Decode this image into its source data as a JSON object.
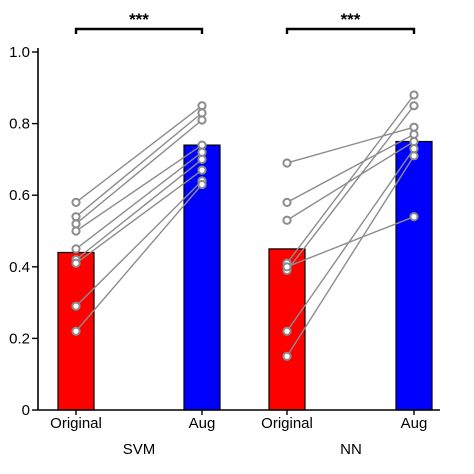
{
  "chart_data": {
    "type": "bar",
    "ylim": [
      0,
      1.0
    ],
    "yticks": [
      0,
      0.2,
      0.4,
      0.6,
      0.8,
      1.0
    ],
    "ytick_labels": [
      "0",
      "0.2",
      "0.4",
      "0.6",
      "0.8",
      "1.0"
    ],
    "grid": false,
    "groups": [
      {
        "name": "SVM",
        "significance": "***",
        "bars": [
          {
            "category": "Original",
            "value": 0.44,
            "color": "#ff0000"
          },
          {
            "category": "Aug",
            "value": 0.74,
            "color": "#0000ff"
          }
        ],
        "pairs": [
          [
            0.58,
            0.85
          ],
          [
            0.54,
            0.83
          ],
          [
            0.52,
            0.81
          ],
          [
            0.5,
            0.74
          ],
          [
            0.45,
            0.72
          ],
          [
            0.42,
            0.7
          ],
          [
            0.41,
            0.67
          ],
          [
            0.29,
            0.64
          ],
          [
            0.22,
            0.63
          ]
        ]
      },
      {
        "name": "NN",
        "significance": "***",
        "bars": [
          {
            "category": "Original",
            "value": 0.45,
            "color": "#ff0000"
          },
          {
            "category": "Aug",
            "value": 0.75,
            "color": "#0000ff"
          }
        ],
        "pairs": [
          [
            0.69,
            0.79
          ],
          [
            0.58,
            0.77
          ],
          [
            0.53,
            0.75
          ],
          [
            0.41,
            0.88
          ],
          [
            0.39,
            0.85
          ],
          [
            0.22,
            0.73
          ],
          [
            0.15,
            0.71
          ],
          [
            0.4,
            0.54
          ]
        ]
      }
    ]
  }
}
